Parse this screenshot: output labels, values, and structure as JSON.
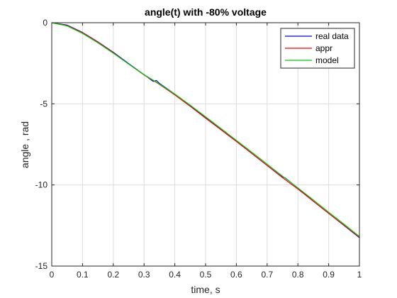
{
  "chart_data": {
    "type": "line",
    "title": "angle(t) with -80% voltage",
    "xlabel": "time, s",
    "ylabel": "angle , rad",
    "xlim": [
      0,
      1
    ],
    "ylim": [
      -15,
      0
    ],
    "xticks": [
      0,
      0.1,
      0.2,
      0.3,
      0.4,
      0.5,
      0.6,
      0.7,
      0.8,
      0.9,
      1
    ],
    "xtick_labels": [
      "0",
      "0.1",
      "0.2",
      "0.3",
      "0.4",
      "0.5",
      "0.6",
      "0.7",
      "0.8",
      "0.9",
      "1"
    ],
    "yticks": [
      0,
      -5,
      -10,
      -15
    ],
    "ytick_labels": [
      "0",
      "-5",
      "-10",
      "-15"
    ],
    "grid": true,
    "legend_position": "top-right",
    "series": [
      {
        "name": "real data",
        "color": "#0000ff",
        "x": [
          0,
          0.05,
          0.1,
          0.15,
          0.2,
          0.25,
          0.3,
          0.33,
          0.34,
          0.35,
          0.4,
          0.45,
          0.5,
          0.55,
          0.6,
          0.65,
          0.7,
          0.74,
          0.75,
          0.76,
          0.8,
          0.85,
          0.9,
          0.95,
          1.0
        ],
        "y": [
          0,
          -0.15,
          -0.6,
          -1.18,
          -1.82,
          -2.52,
          -3.2,
          -3.62,
          -3.56,
          -3.74,
          -4.4,
          -5.1,
          -5.85,
          -6.58,
          -7.3,
          -8.05,
          -8.8,
          -9.38,
          -9.5,
          -9.58,
          -10.2,
          -11.0,
          -11.75,
          -12.5,
          -13.25
        ]
      },
      {
        "name": "appr",
        "color": "#ff0000",
        "x": [
          0,
          0.05,
          0.1,
          0.15,
          0.2,
          0.25,
          0.3,
          0.35,
          0.4,
          0.45,
          0.5,
          0.55,
          0.6,
          0.65,
          0.7,
          0.75,
          0.8,
          0.85,
          0.9,
          0.95,
          1.0
        ],
        "y": [
          0,
          -0.18,
          -0.62,
          -1.2,
          -1.85,
          -2.55,
          -3.22,
          -3.8,
          -4.45,
          -5.15,
          -5.88,
          -6.6,
          -7.32,
          -8.05,
          -8.8,
          -9.55,
          -10.25,
          -11.0,
          -11.75,
          -12.48,
          -13.22
        ]
      },
      {
        "name": "model",
        "color": "#00cc00",
        "x": [
          0,
          0.05,
          0.1,
          0.15,
          0.2,
          0.25,
          0.3,
          0.35,
          0.4,
          0.45,
          0.5,
          0.55,
          0.6,
          0.65,
          0.7,
          0.75,
          0.8,
          0.85,
          0.9,
          0.95,
          1.0
        ],
        "y": [
          0,
          -0.2,
          -0.66,
          -1.24,
          -1.88,
          -2.55,
          -3.2,
          -3.78,
          -4.4,
          -5.08,
          -5.8,
          -6.52,
          -7.25,
          -7.98,
          -8.72,
          -9.46,
          -10.18,
          -10.92,
          -11.68,
          -12.42,
          -13.18
        ]
      }
    ]
  }
}
